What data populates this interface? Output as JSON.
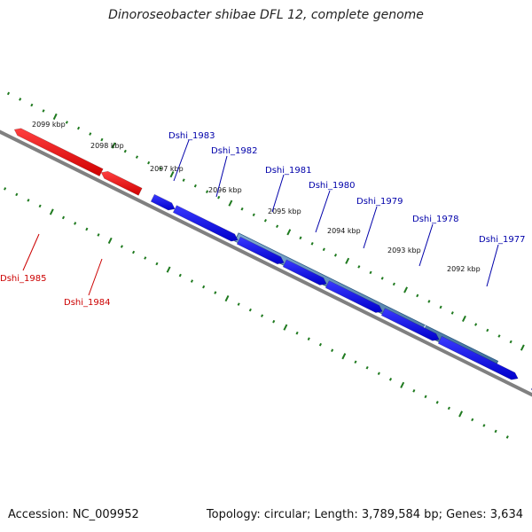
{
  "title": "Dinoroseobacter shibae DFL 12, complete genome",
  "footer": {
    "accession": "Accession: NC_009952",
    "stats": "Topology: circular; Length: 3,789,584 bp; Genes: 3,634"
  },
  "colors": {
    "forward_gene": "#0000ee",
    "reverse_gene": "#ee0000",
    "cds_feature": "#4a7fae",
    "backbone": "#808080",
    "ticks": "#1f7a1f",
    "forward_label": "#0000aa",
    "reverse_label": "#cc0000"
  },
  "ruler": {
    "unit": "kbp",
    "labels": [
      "2099 kbp",
      "2098 kbp",
      "2097 kbp",
      "2096 kbp",
      "2095 kbp",
      "2094 kbp",
      "2093 kbp",
      "2092 kbp"
    ]
  },
  "genes": [
    {
      "name": "Dshi_1983",
      "strand": "+"
    },
    {
      "name": "Dshi_1982",
      "strand": "+"
    },
    {
      "name": "Dshi_1981",
      "strand": "+"
    },
    {
      "name": "Dshi_1980",
      "strand": "+"
    },
    {
      "name": "Dshi_1979",
      "strand": "+"
    },
    {
      "name": "Dshi_1978",
      "strand": "+"
    },
    {
      "name": "Dshi_1977",
      "strand": "+"
    },
    {
      "name": "Dshi_1985",
      "strand": "-"
    },
    {
      "name": "Dshi_1984",
      "strand": "-"
    }
  ]
}
